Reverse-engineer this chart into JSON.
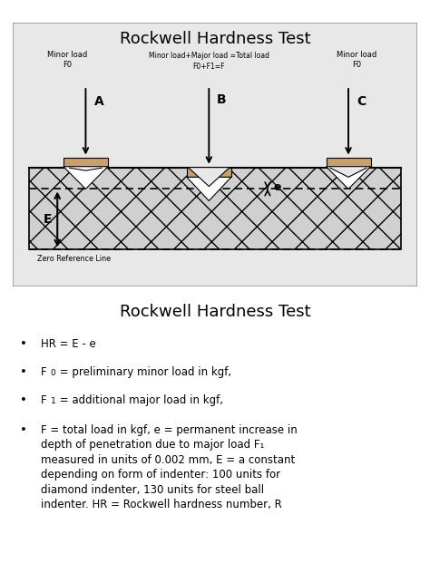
{
  "title1": "Rockwell Hardness Test",
  "title2": "Rockwell Hardness Test",
  "diagram_bg": "#e8e8e8",
  "indenter_fill": "#c8a070",
  "minor_load_A": "Minor load\nF0",
  "minor_load_C": "Minor load\nF0",
  "major_load_text_line1": "Minor load+Major load =Total load",
  "major_load_text_line2": "F0+F1=F",
  "zero_ref_text": "Zero Reference Line",
  "label_A": "A",
  "label_B": "B",
  "label_C": "C",
  "label_E": "E",
  "label_e": "e",
  "bullet1": "HR = E - e",
  "bullet2_pre": "F",
  "bullet2_sub": "0",
  "bullet2_post": " = preliminary minor load in kgf,",
  "bullet3_pre": "F",
  "bullet3_sub": "1",
  "bullet3_post": " = additional major load in kgf,",
  "bullet4_line1": "F = total load in kgf, e = permanent increase in",
  "bullet4_line2": "depth of penetration due to major load F",
  "bullet4_line2_sub": "1",
  "bullet4_line3": "measured in units of 0.002 mm, E = a constant",
  "bullet4_line4": "depending on form of indenter: 100 units for",
  "bullet4_line5": "diamond indenter, 130 units for steel ball",
  "bullet4_line6": "indenter. HR = Rockwell hardness number, R"
}
